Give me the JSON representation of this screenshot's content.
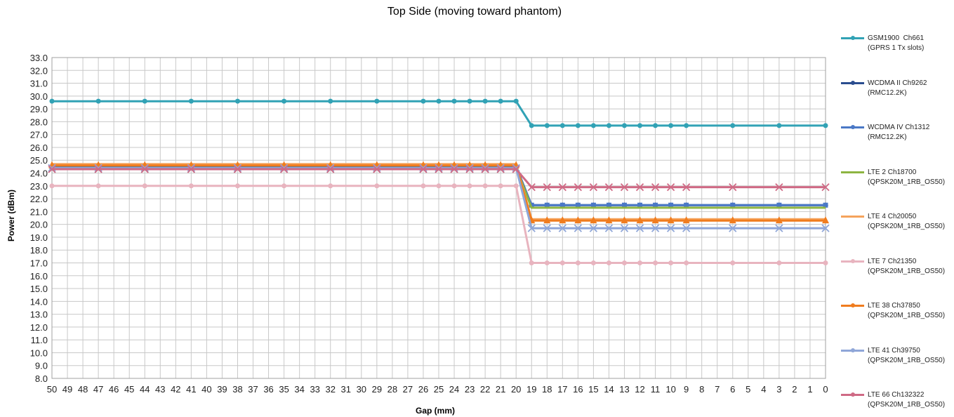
{
  "chart_data": {
    "type": "line",
    "title": "Top Side",
    "subtitle": "(moving toward phantom)",
    "xlabel": "Gap (mm)",
    "ylabel": "Power (dBm)",
    "ylim": [
      8.0,
      33.0
    ],
    "y_ticks": [
      "33.0",
      "32.0",
      "31.0",
      "30.0",
      "29.0",
      "28.0",
      "27.0",
      "26.0",
      "25.0",
      "24.0",
      "23.0",
      "22.0",
      "21.0",
      "20.0",
      "19.0",
      "18.0",
      "17.0",
      "16.0",
      "15.0",
      "14.0",
      "13.0",
      "12.0",
      "11.0",
      "10.0",
      "9.0",
      "8.0"
    ],
    "x_ticks": [
      "50",
      "49",
      "48",
      "47",
      "46",
      "45",
      "44",
      "43",
      "42",
      "41",
      "40",
      "39",
      "38",
      "37",
      "36",
      "35",
      "34",
      "33",
      "32",
      "31",
      "30",
      "29",
      "28",
      "27",
      "26",
      "25",
      "24",
      "23",
      "22",
      "21",
      "20",
      "19",
      "18",
      "17",
      "16",
      "15",
      "14",
      "13",
      "12",
      "11",
      "10",
      "9",
      "8",
      "7",
      "6",
      "5",
      "4",
      "3",
      "2",
      "1",
      "0"
    ],
    "x_axis_reversed": true,
    "grid": true,
    "legend_position": "right",
    "x": [
      50,
      47,
      44,
      41,
      38,
      35,
      32,
      29,
      26,
      25,
      24,
      23,
      22,
      21,
      20,
      19,
      18,
      17,
      16,
      15,
      14,
      13,
      12,
      11,
      10,
      9,
      6,
      3,
      0
    ],
    "series": [
      {
        "name": "GSM1900  Ch661",
        "name2": "(GPRS 1 Tx slots)",
        "color": "#31a2b5",
        "marker": "circle",
        "values": [
          29.6,
          29.6,
          29.6,
          29.6,
          29.6,
          29.6,
          29.6,
          29.6,
          29.6,
          29.6,
          29.6,
          29.6,
          29.6,
          29.6,
          29.6,
          27.7,
          27.7,
          27.7,
          27.7,
          27.7,
          27.7,
          27.7,
          27.7,
          27.7,
          27.7,
          27.7,
          27.7,
          27.7,
          27.7
        ]
      },
      {
        "name": "WCDMA II Ch9262",
        "name2": "(RMC12.2K)",
        "color": "#2a4d8f",
        "marker": "diamond",
        "values": [
          24.5,
          24.5,
          24.5,
          24.5,
          24.5,
          24.5,
          24.5,
          24.5,
          24.5,
          24.5,
          24.5,
          24.5,
          24.5,
          24.5,
          24.5,
          21.5,
          21.5,
          21.5,
          21.5,
          21.5,
          21.5,
          21.5,
          21.5,
          21.5,
          21.5,
          21.5,
          21.5,
          21.5,
          21.5
        ]
      },
      {
        "name": "WCDMA IV Ch1312",
        "name2": "(RMC12.2K)",
        "color": "#4a78c6",
        "marker": "square",
        "values": [
          24.4,
          24.4,
          24.4,
          24.4,
          24.4,
          24.4,
          24.4,
          24.4,
          24.4,
          24.4,
          24.4,
          24.4,
          24.4,
          24.4,
          24.4,
          21.5,
          21.5,
          21.5,
          21.5,
          21.5,
          21.5,
          21.5,
          21.5,
          21.5,
          21.5,
          21.5,
          21.5,
          21.5,
          21.5
        ]
      },
      {
        "name": "LTE 2 Ch18700",
        "name2": "(QPSK20M_1RB_OS50)",
        "color": "#8db542",
        "marker": "none",
        "values": [
          24.4,
          24.4,
          24.4,
          24.4,
          24.4,
          24.4,
          24.4,
          24.4,
          24.4,
          24.4,
          24.4,
          24.4,
          24.4,
          24.4,
          24.4,
          21.3,
          21.3,
          21.3,
          21.3,
          21.3,
          21.3,
          21.3,
          21.3,
          21.3,
          21.3,
          21.3,
          21.3,
          21.3,
          21.3
        ]
      },
      {
        "name": "LTE 4 Ch20050",
        "name2": "(QPSK20M_1RB_OS50)",
        "color": "#f5a35c",
        "marker": "none",
        "values": [
          24.7,
          24.7,
          24.7,
          24.7,
          24.7,
          24.7,
          24.7,
          24.7,
          24.7,
          24.7,
          24.7,
          24.7,
          24.7,
          24.7,
          24.7,
          20.4,
          20.4,
          20.4,
          20.4,
          20.4,
          20.4,
          20.4,
          20.4,
          20.4,
          20.4,
          20.4,
          20.4,
          20.4,
          20.4
        ]
      },
      {
        "name": "LTE 7 Ch21350",
        "name2": "(QPSK20M_1RB_OS50)",
        "color": "#e8b4bf",
        "marker": "circle",
        "values": [
          23.0,
          23.0,
          23.0,
          23.0,
          23.0,
          23.0,
          23.0,
          23.0,
          23.0,
          23.0,
          23.0,
          23.0,
          23.0,
          23.0,
          23.0,
          17.0,
          17.0,
          17.0,
          17.0,
          17.0,
          17.0,
          17.0,
          17.0,
          17.0,
          17.0,
          17.0,
          17.0,
          17.0,
          17.0
        ]
      },
      {
        "name": "LTE 38 Ch37850",
        "name2": "(QPSK20M_1RB_OS50)",
        "color": "#f07c1e",
        "marker": "triangle",
        "values": [
          24.6,
          24.6,
          24.6,
          24.6,
          24.6,
          24.6,
          24.6,
          24.6,
          24.6,
          24.6,
          24.6,
          24.6,
          24.6,
          24.6,
          24.6,
          20.3,
          20.3,
          20.3,
          20.3,
          20.3,
          20.3,
          20.3,
          20.3,
          20.3,
          20.3,
          20.3,
          20.3,
          20.3,
          20.3
        ]
      },
      {
        "name": "LTE 41 Ch39750",
        "name2": "(QPSK20M_1RB_OS50)",
        "color": "#8fa6d8",
        "marker": "x",
        "values": [
          24.4,
          24.4,
          24.4,
          24.4,
          24.4,
          24.4,
          24.4,
          24.4,
          24.4,
          24.4,
          24.4,
          24.4,
          24.4,
          24.4,
          24.4,
          19.7,
          19.7,
          19.7,
          19.7,
          19.7,
          19.7,
          19.7,
          19.7,
          19.7,
          19.7,
          19.7,
          19.7,
          19.7,
          19.7
        ]
      },
      {
        "name": "LTE 66 Ch132322",
        "name2": "(QPSK20M_1RB_OS50)",
        "color": "#cf6a85",
        "marker": "x",
        "values": [
          24.3,
          24.3,
          24.3,
          24.3,
          24.3,
          24.3,
          24.3,
          24.3,
          24.3,
          24.3,
          24.3,
          24.3,
          24.3,
          24.3,
          24.3,
          22.9,
          22.9,
          22.9,
          22.9,
          22.9,
          22.9,
          22.9,
          22.9,
          22.9,
          22.9,
          22.9,
          22.9,
          22.9,
          22.9
        ]
      }
    ]
  }
}
